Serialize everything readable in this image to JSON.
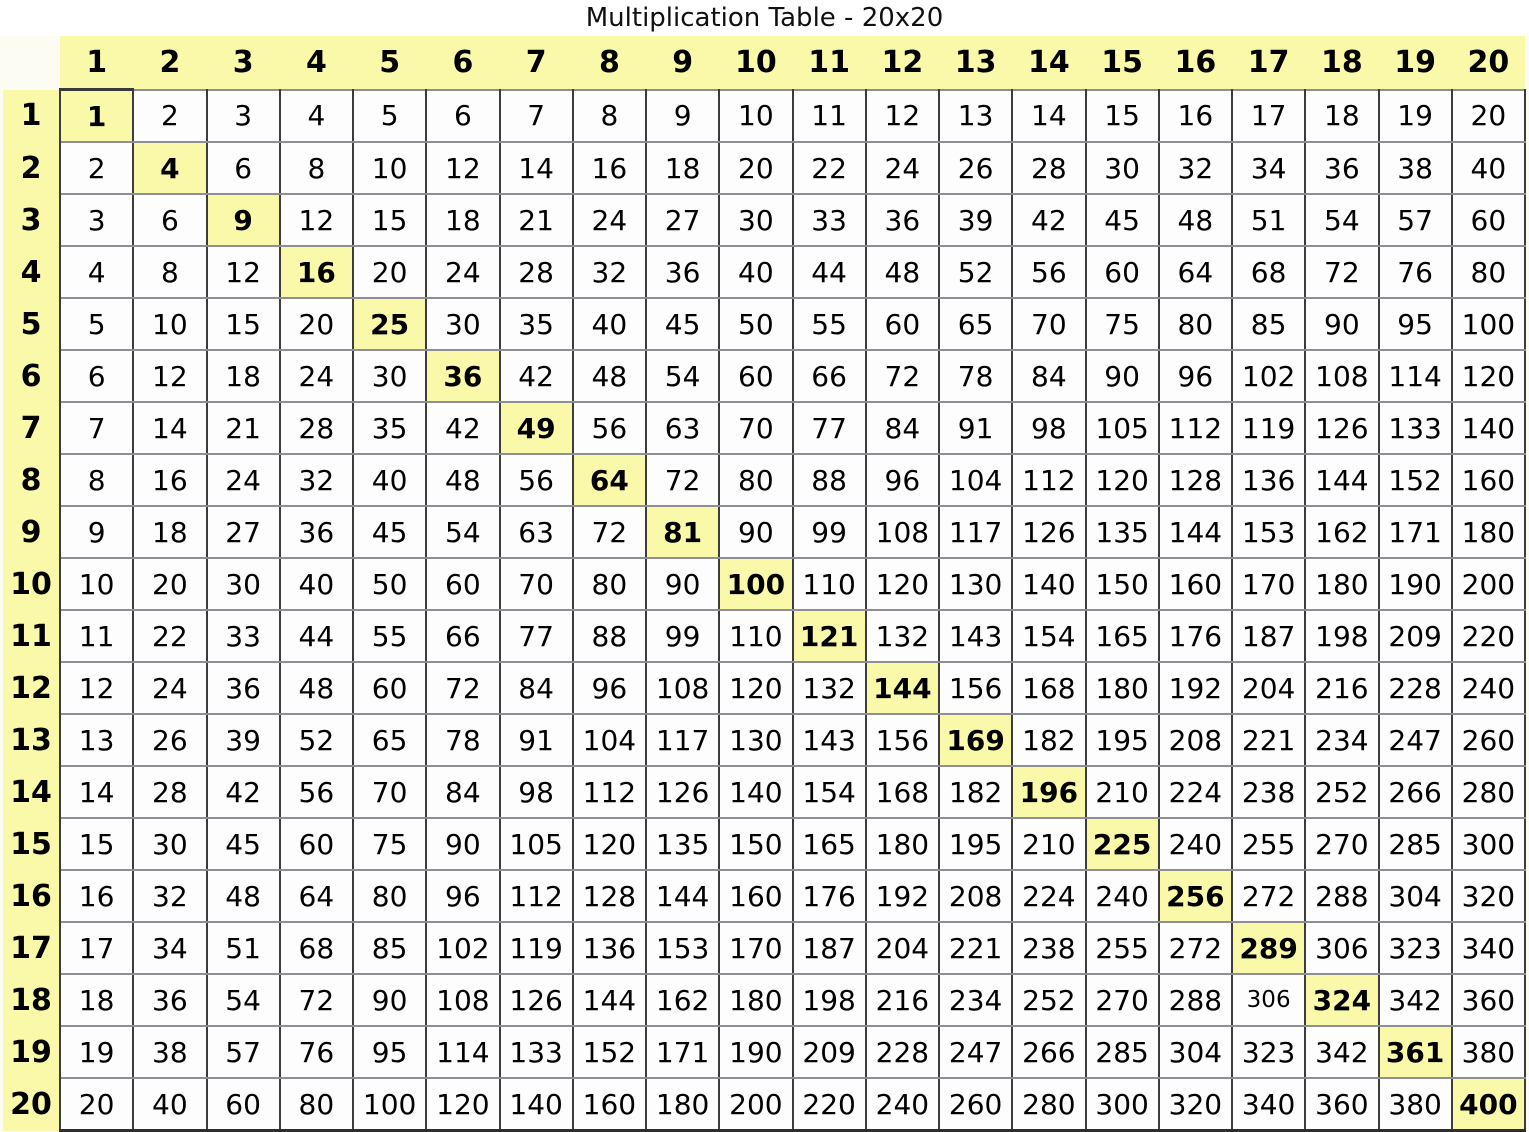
{
  "title": "Multiplication Table - 20x20",
  "colors": {
    "highlight_yellow": "#f9f9a9",
    "cell_background": "#fdfdfd",
    "page_background": "#fcfcf2",
    "grid_horizontal": "#8e8e96",
    "grid_vertical": "#3d3d3d",
    "text": "#000000"
  },
  "table": {
    "corner_label": "",
    "column_headers": [
      "1",
      "2",
      "3",
      "4",
      "5",
      "6",
      "7",
      "8",
      "9",
      "10",
      "11",
      "12",
      "13",
      "14",
      "15",
      "16",
      "17",
      "18",
      "19",
      "20"
    ],
    "row_headers": [
      "1",
      "2",
      "3",
      "4",
      "5",
      "6",
      "7",
      "8",
      "9",
      "10",
      "11",
      "12",
      "13",
      "14",
      "15",
      "16",
      "17",
      "18",
      "19",
      "20"
    ],
    "rows": [
      [
        1,
        2,
        3,
        4,
        5,
        6,
        7,
        8,
        9,
        10,
        11,
        12,
        13,
        14,
        15,
        16,
        17,
        18,
        19,
        20
      ],
      [
        2,
        4,
        6,
        8,
        10,
        12,
        14,
        16,
        18,
        20,
        22,
        24,
        26,
        28,
        30,
        32,
        34,
        36,
        38,
        40
      ],
      [
        3,
        6,
        9,
        12,
        15,
        18,
        21,
        24,
        27,
        30,
        33,
        36,
        39,
        42,
        45,
        48,
        51,
        54,
        57,
        60
      ],
      [
        4,
        8,
        12,
        16,
        20,
        24,
        28,
        32,
        36,
        40,
        44,
        48,
        52,
        56,
        60,
        64,
        68,
        72,
        76,
        80
      ],
      [
        5,
        10,
        15,
        20,
        25,
        30,
        35,
        40,
        45,
        50,
        55,
        60,
        65,
        70,
        75,
        80,
        85,
        90,
        95,
        100
      ],
      [
        6,
        12,
        18,
        24,
        30,
        36,
        42,
        48,
        54,
        60,
        66,
        72,
        78,
        84,
        90,
        96,
        102,
        108,
        114,
        120
      ],
      [
        7,
        14,
        21,
        28,
        35,
        42,
        49,
        56,
        63,
        70,
        77,
        84,
        91,
        98,
        105,
        112,
        119,
        126,
        133,
        140
      ],
      [
        8,
        16,
        24,
        32,
        40,
        48,
        56,
        64,
        72,
        80,
        88,
        96,
        104,
        112,
        120,
        128,
        136,
        144,
        152,
        160
      ],
      [
        9,
        18,
        27,
        36,
        45,
        54,
        63,
        72,
        81,
        90,
        99,
        108,
        117,
        126,
        135,
        144,
        153,
        162,
        171,
        180
      ],
      [
        10,
        20,
        30,
        40,
        50,
        60,
        70,
        80,
        90,
        100,
        110,
        120,
        130,
        140,
        150,
        160,
        170,
        180,
        190,
        200
      ],
      [
        11,
        22,
        33,
        44,
        55,
        66,
        77,
        88,
        99,
        110,
        121,
        132,
        143,
        154,
        165,
        176,
        187,
        198,
        209,
        220
      ],
      [
        12,
        24,
        36,
        48,
        60,
        72,
        84,
        96,
        108,
        120,
        132,
        144,
        156,
        168,
        180,
        192,
        204,
        216,
        228,
        240
      ],
      [
        13,
        26,
        39,
        52,
        65,
        78,
        91,
        104,
        117,
        130,
        143,
        156,
        169,
        182,
        195,
        208,
        221,
        234,
        247,
        260
      ],
      [
        14,
        28,
        42,
        56,
        70,
        84,
        98,
        112,
        126,
        140,
        154,
        168,
        182,
        196,
        210,
        224,
        238,
        252,
        266,
        280
      ],
      [
        15,
        30,
        45,
        60,
        75,
        90,
        105,
        120,
        135,
        150,
        165,
        180,
        195,
        210,
        225,
        240,
        255,
        270,
        285,
        300
      ],
      [
        16,
        32,
        48,
        64,
        80,
        96,
        112,
        128,
        144,
        160,
        176,
        192,
        208,
        224,
        240,
        256,
        272,
        288,
        304,
        320
      ],
      [
        17,
        34,
        51,
        68,
        85,
        102,
        119,
        136,
        153,
        170,
        187,
        204,
        221,
        238,
        255,
        272,
        289,
        306,
        323,
        340
      ],
      [
        18,
        36,
        54,
        72,
        90,
        108,
        126,
        144,
        162,
        180,
        198,
        216,
        234,
        252,
        270,
        288,
        306,
        324,
        342,
        360
      ],
      [
        19,
        38,
        57,
        76,
        95,
        114,
        133,
        152,
        171,
        190,
        209,
        228,
        247,
        266,
        285,
        304,
        323,
        342,
        361,
        380
      ],
      [
        20,
        40,
        60,
        80,
        100,
        120,
        140,
        160,
        180,
        200,
        220,
        240,
        260,
        280,
        300,
        320,
        340,
        360,
        380,
        400
      ]
    ],
    "highlight_rule": "diagonal",
    "small_text_cell": {
      "row": 18,
      "col": 17
    }
  }
}
